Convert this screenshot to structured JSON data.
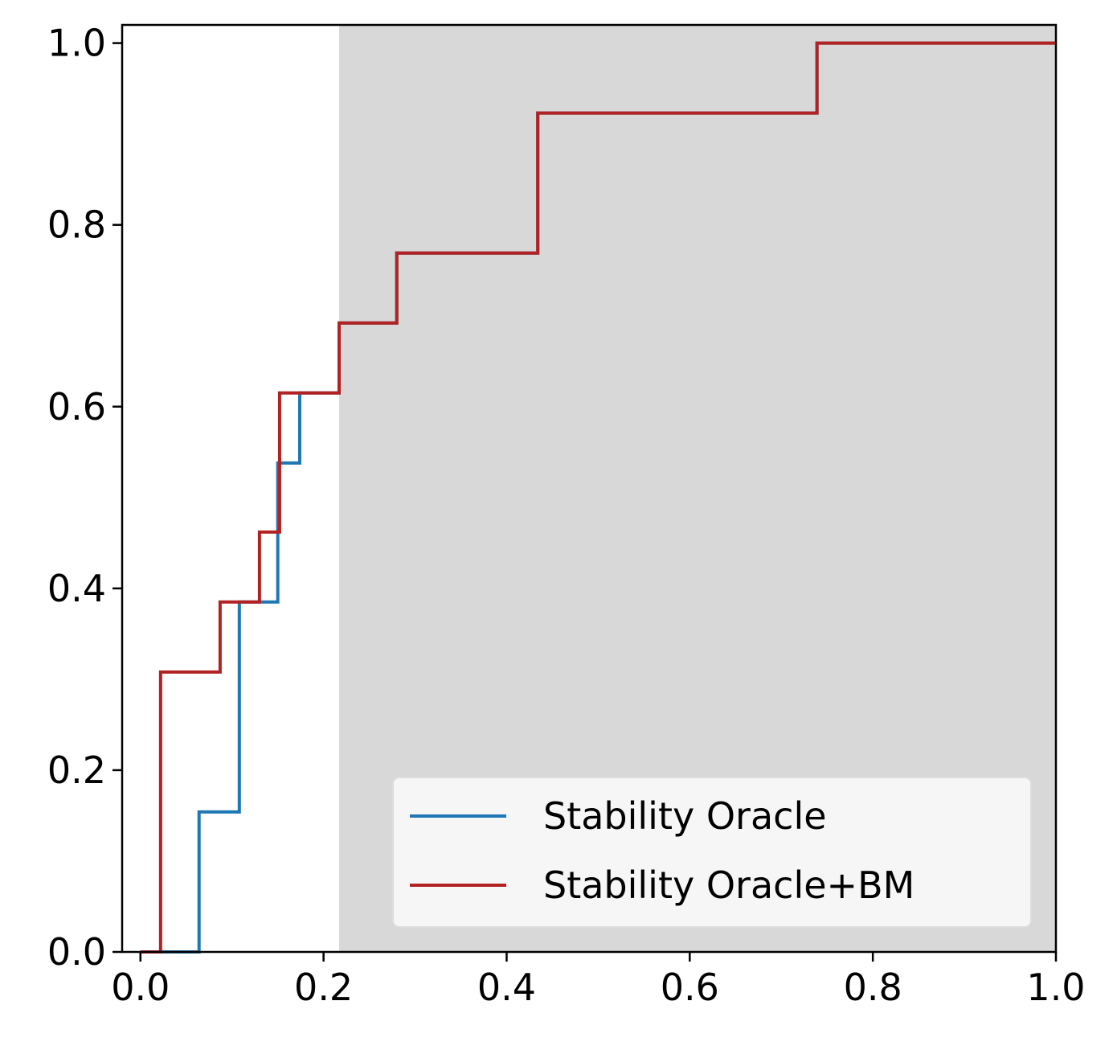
{
  "chart_data": {
    "type": "line",
    "step": "post",
    "title": "",
    "xlabel": "",
    "ylabel": "",
    "xlim": [
      -0.02,
      1.0
    ],
    "ylim": [
      0.0,
      1.02
    ],
    "xticks": [
      "0.0",
      "0.2",
      "0.4",
      "0.6",
      "0.8",
      "1.0"
    ],
    "yticks": [
      "0.0",
      "0.2",
      "0.4",
      "0.6",
      "0.8",
      "1.0"
    ],
    "xtick_values": [
      0.0,
      0.2,
      0.4,
      0.6,
      0.8,
      1.0
    ],
    "ytick_values": [
      0.0,
      0.2,
      0.4,
      0.6,
      0.8,
      1.0
    ],
    "grid": false,
    "legend_position": "lower-right",
    "shaded_region": {
      "x_from": 0.217,
      "x_to": 1.0,
      "color": "#d8d8d8"
    },
    "series": [
      {
        "name": "Stability Oracle",
        "color": "#1f77b4",
        "x": [
          0.0,
          0.064,
          0.108,
          0.15,
          0.174,
          0.217,
          0.28,
          0.434,
          0.739,
          1.0
        ],
        "y": [
          0.0,
          0.154,
          0.385,
          0.538,
          0.615,
          0.692,
          0.769,
          0.923,
          1.0,
          1.0
        ]
      },
      {
        "name": "Stability Oracle+BM",
        "color": "#b22222",
        "x": [
          0.0,
          0.022,
          0.087,
          0.13,
          0.152,
          0.217,
          0.28,
          0.434,
          0.739,
          1.0
        ],
        "y": [
          0.0,
          0.308,
          0.385,
          0.462,
          0.615,
          0.692,
          0.769,
          0.923,
          1.0,
          1.0
        ]
      }
    ]
  }
}
